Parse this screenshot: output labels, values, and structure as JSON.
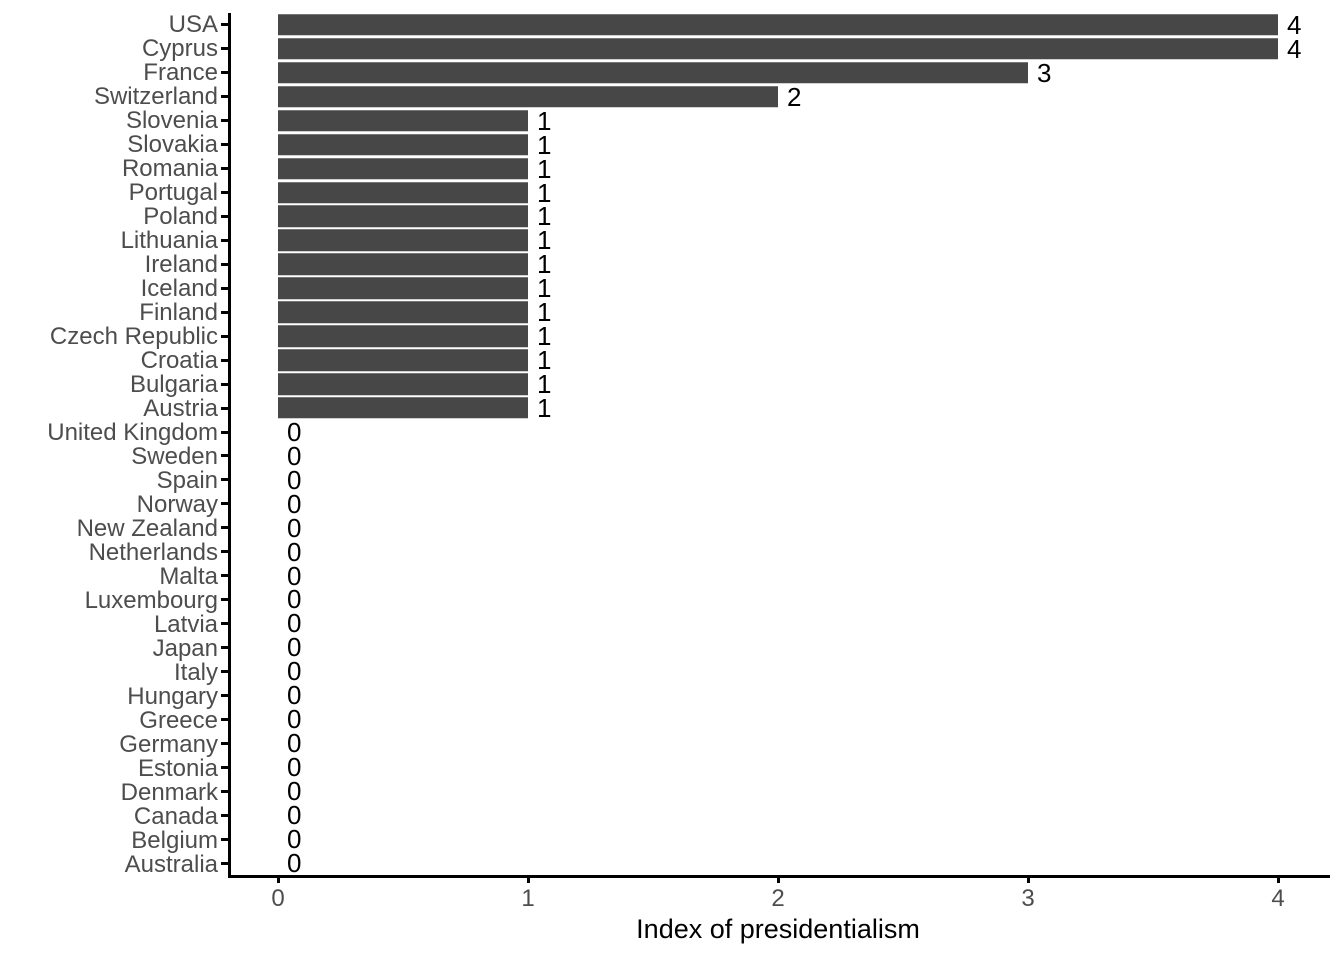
{
  "chart_data": {
    "type": "bar",
    "orientation": "horizontal",
    "title": "",
    "xlabel": "Index of presidentialism",
    "ylabel": "",
    "categories": [
      "USA",
      "Cyprus",
      "France",
      "Switzerland",
      "Slovenia",
      "Slovakia",
      "Romania",
      "Portugal",
      "Poland",
      "Lithuania",
      "Ireland",
      "Iceland",
      "Finland",
      "Czech Republic",
      "Croatia",
      "Bulgaria",
      "Austria",
      "United Kingdom",
      "Sweden",
      "Spain",
      "Norway",
      "New Zealand",
      "Netherlands",
      "Malta",
      "Luxembourg",
      "Latvia",
      "Japan",
      "Italy",
      "Hungary",
      "Greece",
      "Germany",
      "Estonia",
      "Denmark",
      "Canada",
      "Belgium",
      "Australia"
    ],
    "values": [
      4,
      4,
      3,
      2,
      1,
      1,
      1,
      1,
      1,
      1,
      1,
      1,
      1,
      1,
      1,
      1,
      1,
      0,
      0,
      0,
      0,
      0,
      0,
      0,
      0,
      0,
      0,
      0,
      0,
      0,
      0,
      0,
      0,
      0,
      0,
      0
    ],
    "bar_value_labels": [
      4,
      4,
      3,
      2,
      1,
      1,
      1,
      1,
      1,
      1,
      1,
      1,
      1,
      1,
      1,
      1,
      1,
      0,
      0,
      0,
      0,
      0,
      0,
      0,
      0,
      0,
      0,
      0,
      0,
      0,
      0,
      0,
      0,
      0,
      0,
      0
    ],
    "x_ticks": [
      0,
      1,
      2,
      3,
      4
    ],
    "xlim": [
      -0.2,
      4.2
    ],
    "grid": false,
    "legend_position": "none",
    "colors": {
      "bar_fill": "#474747",
      "axis_line": "#000000",
      "axis_text": "#4d4d4d",
      "value_label": "#000000",
      "axis_title": "#000000",
      "background": "#ffffff"
    }
  }
}
